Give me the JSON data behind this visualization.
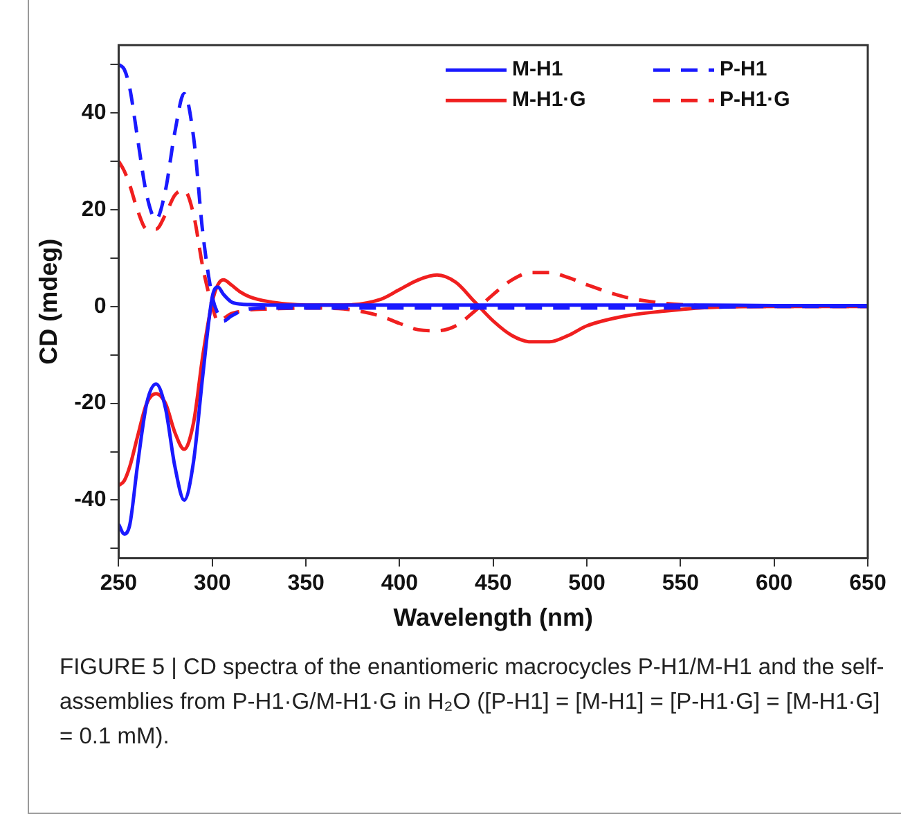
{
  "chart_data": {
    "type": "line",
    "xlabel": "Wavelength (nm)",
    "ylabel": "CD (mdeg)",
    "x": [
      250,
      253,
      256,
      260,
      265,
      270,
      275,
      280,
      285,
      290,
      295,
      300,
      303,
      306,
      310,
      315,
      320,
      330,
      340,
      350,
      370,
      390,
      400,
      410,
      420,
      430,
      440,
      450,
      460,
      470,
      480,
      490,
      500,
      520,
      540,
      560,
      600,
      650
    ],
    "series": [
      {
        "name": "M-H1",
        "color": "#1a1aff",
        "line_style": "solid",
        "values": [
          -45,
          -47,
          -45,
          -33,
          -20,
          -16,
          -21,
          -33,
          -40,
          -32,
          -14,
          2,
          4,
          2.5,
          1,
          0.5,
          0.4,
          0.3,
          0.3,
          0.3,
          0.3,
          0.3,
          0.3,
          0.3,
          0.3,
          0.3,
          0.3,
          0.3,
          0.3,
          0.3,
          0.3,
          0.3,
          0.3,
          0.3,
          0.3,
          0.3,
          0.2,
          0.2
        ]
      },
      {
        "name": "P-H1",
        "color": "#1a1aff",
        "line_style": "dashed",
        "values": [
          50,
          49,
          45,
          35,
          23,
          18,
          24,
          36,
          44,
          35,
          15,
          2,
          -1.5,
          -3,
          -2,
          -1,
          -0.5,
          -0.3,
          -0.3,
          -0.3,
          -0.3,
          -0.3,
          -0.3,
          -0.3,
          -0.3,
          -0.3,
          -0.3,
          -0.3,
          -0.3,
          -0.3,
          -0.3,
          -0.3,
          -0.3,
          -0.3,
          -0.3,
          -0.2,
          0,
          0
        ]
      },
      {
        "name": "M-H1·G",
        "color": "#f01f1f",
        "line_style": "solid",
        "values": [
          -37,
          -36,
          -33,
          -27,
          -20,
          -18,
          -20,
          -26,
          -29.5,
          -24,
          -10,
          1,
          4.5,
          5.5,
          4.5,
          3,
          2,
          1,
          0.5,
          0.3,
          0.3,
          1.5,
          3.5,
          5.5,
          6.5,
          5,
          1,
          -3,
          -6,
          -7.3,
          -7.3,
          -6,
          -4,
          -2,
          -1,
          -0.3,
          0,
          0
        ]
      },
      {
        "name": "P-H1·G",
        "color": "#f01f1f",
        "line_style": "dashed",
        "values": [
          30,
          28,
          25,
          20,
          16,
          16,
          19,
          23,
          24,
          19,
          8,
          0,
          -3,
          -2.5,
          -1.5,
          -1,
          -0.7,
          -0.5,
          -0.4,
          -0.3,
          -0.5,
          -2,
          -3.5,
          -4.8,
          -5,
          -4,
          -1,
          2.5,
          5.5,
          7,
          7,
          6,
          4.5,
          2,
          0.7,
          0.2,
          0,
          0
        ]
      }
    ],
    "xlim": [
      250,
      650
    ],
    "xticks": [
      250,
      300,
      350,
      400,
      450,
      500,
      550,
      600,
      650
    ],
    "ylim": [
      -52,
      54
    ],
    "yticks": [
      {
        "value": -50,
        "label": null
      },
      -40,
      {
        "value": -30,
        "label": null
      },
      -20,
      {
        "value": -10,
        "label": null
      },
      0,
      {
        "value": 10,
        "label": null
      },
      20,
      {
        "value": 30,
        "label": null
      },
      40,
      {
        "value": 50,
        "label": null
      }
    ],
    "legend": "top right",
    "grid": false,
    "marker": "none",
    "annotations": [
      "FIGURE 5 | CD spectra of the enantiomeric macrocycles P-H1/M-H1 and the self-assemblies from P-H1·G/M-H1·G in H₂O ([P-H1] = [M-H1] = [P-H1·G] = [M-H1·G] = 0.1 mM)."
    ]
  }
}
